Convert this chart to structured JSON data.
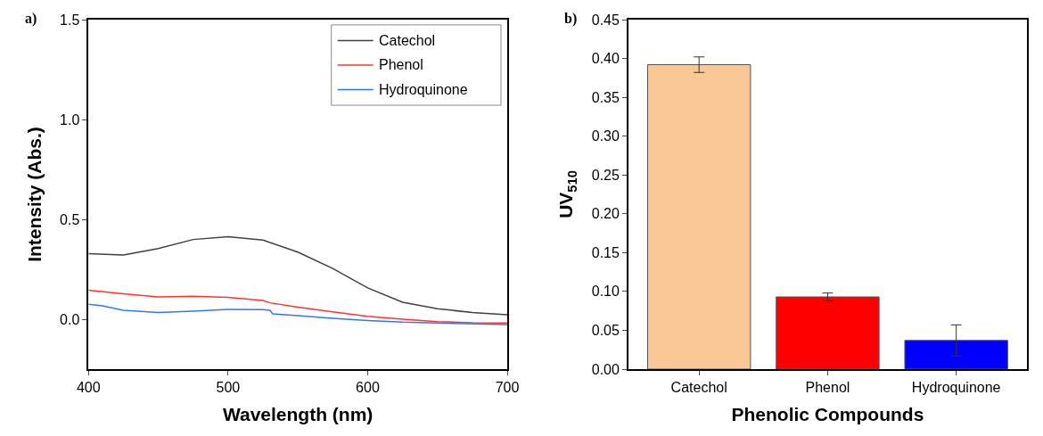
{
  "chart_data": [
    {
      "type": "line",
      "xlabel": "Wavelength (nm)",
      "ylabel": "Intensity (Abs.)",
      "annotations": [
        "a)"
      ],
      "legend": "top right",
      "xlim": [
        400,
        700
      ],
      "xticks": [
        400,
        500,
        600,
        700
      ],
      "ylim": [
        -0.25,
        1.5
      ],
      "yticks": [
        {
          "value": 0,
          "label": "0.0"
        },
        {
          "value": 0.5,
          "label": "0.5"
        },
        {
          "value": 1,
          "label": "1.0"
        },
        {
          "value": 1.5,
          "label": "1.5"
        }
      ],
      "marker": "none",
      "line_style": "solid",
      "series": [
        {
          "name": "Catechol",
          "color": "#404040",
          "x": [
            400,
            425,
            450,
            475,
            500,
            525,
            550,
            575,
            600,
            625,
            650,
            675,
            700
          ],
          "values": [
            0.328,
            0.321,
            0.354,
            0.399,
            0.413,
            0.396,
            0.336,
            0.254,
            0.157,
            0.085,
            0.052,
            0.034,
            0.022
          ]
        },
        {
          "name": "Phenol",
          "color": "#ff3333",
          "x": [
            400,
            425,
            450,
            475,
            500,
            525,
            530,
            550,
            575,
            600,
            625,
            650,
            675,
            700
          ],
          "values": [
            0.145,
            0.127,
            0.112,
            0.115,
            0.109,
            0.094,
            0.082,
            0.06,
            0.037,
            0.015,
            0,
            -0.012,
            -0.018,
            -0.019
          ]
        },
        {
          "name": "Hydroquinone",
          "color": "#3377ee",
          "x": [
            400,
            410,
            425,
            450,
            475,
            500,
            525,
            530,
            532,
            550,
            575,
            600,
            625,
            650,
            700
          ],
          "values": [
            0.075,
            0.067,
            0.045,
            0.033,
            0.04,
            0.049,
            0.048,
            0.045,
            0.027,
            0.018,
            0.004,
            -0.007,
            -0.015,
            -0.019,
            -0.027
          ]
        }
      ]
    },
    {
      "type": "bar",
      "xlabel": "Phenolic Compounds",
      "ylabel": "UV$_{510}$",
      "annotations": [
        "b)"
      ],
      "categories": [
        "Catechol",
        "Phenol",
        "Hydroquinone"
      ],
      "values": [
        0.392,
        0.093,
        0.037
      ],
      "errors": [
        0.01,
        0.005,
        0.02
      ],
      "colors": [
        "#f9c896",
        "#ff0000",
        "#0000ff"
      ],
      "ylim": [
        0,
        0.45
      ],
      "yticks": [
        {
          "value": 0,
          "label": "0.00"
        },
        {
          "value": 0.05,
          "label": "0.05"
        },
        {
          "value": 0.1,
          "label": "0.10"
        },
        {
          "value": 0.15,
          "label": "0.15"
        },
        {
          "value": 0.2,
          "label": "0.20"
        },
        {
          "value": 0.25,
          "label": "0.25"
        },
        {
          "value": 0.3,
          "label": "0.30"
        },
        {
          "value": 0.35,
          "label": "0.35"
        },
        {
          "value": 0.4,
          "label": "0.40"
        },
        {
          "value": 0.45,
          "label": "0.45"
        }
      ]
    }
  ]
}
